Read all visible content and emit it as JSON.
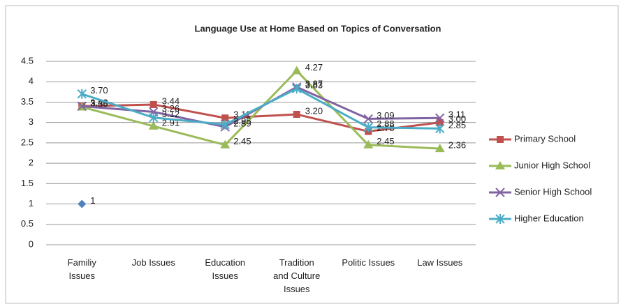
{
  "chart_data": {
    "type": "line",
    "title": "Language Use at Home Based on Topics of Conversation",
    "categories": [
      "Familiy\nIssues",
      "Job Issues",
      "Education\nIssues",
      "Tradition\nand Culture\nIssues",
      "Politic Issues",
      "Law Issues"
    ],
    "ylim": [
      0,
      4.5
    ],
    "yticks": [
      0,
      0.5,
      1,
      1.5,
      2,
      2.5,
      3,
      3.5,
      4,
      4.5
    ],
    "grid": true,
    "legend": "right",
    "series": [
      {
        "color": "#4f81bd",
        "marker": "diamond",
        "values": [
          1,
          null,
          null,
          null,
          null,
          null
        ]
      },
      {
        "name": "Primary School",
        "color": "#c0504d",
        "marker": "square",
        "values": [
          3.4,
          3.44,
          3.11,
          3.2,
          2.78,
          3.0
        ],
        "value_labels": [
          "3.40",
          "3.44",
          "3.11",
          "3.20",
          "2.78",
          "3.00"
        ]
      },
      {
        "name": "Junior High School",
        "color": "#9bbb59",
        "marker": "triangle",
        "values": [
          3.38,
          2.91,
          2.45,
          4.27,
          2.45,
          2.36
        ],
        "value_labels": [
          "3.38",
          "2.91",
          "2.45",
          "4.27",
          "2.45",
          "2.36"
        ]
      },
      {
        "name": "Senior High School",
        "color": "#8064a2",
        "marker": "x",
        "values": [
          3.4,
          3.26,
          2.89,
          3.87,
          3.09,
          3.11
        ],
        "value_labels": [
          "3.40",
          "3.26",
          "2.89",
          "3.87",
          "3.09",
          "3.11"
        ]
      },
      {
        "name": "Higher Education",
        "color": "#4bacc6",
        "marker": "star",
        "values": [
          3.7,
          3.12,
          2.95,
          3.83,
          2.88,
          2.85
        ],
        "value_labels": [
          "3.70",
          "3.12",
          "2.95",
          "3.83",
          "2.88",
          "2.85"
        ]
      }
    ]
  }
}
